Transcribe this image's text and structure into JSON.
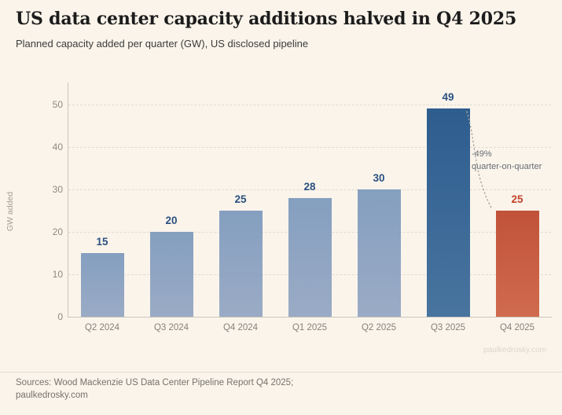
{
  "header": {
    "title": "US data center capacity additions halved in Q4 2025",
    "subtitle": "Planned capacity added per quarter (GW), US disclosed pipeline"
  },
  "chart_data": {
    "type": "bar",
    "title": "US data center capacity additions halved in Q4 2025",
    "subtitle": "Planned capacity added per quarter (GW), US disclosed pipeline",
    "categories": [
      "Q2 2024",
      "Q3 2024",
      "Q4 2024",
      "Q1 2025",
      "Q2 2025",
      "Q3 2025",
      "Q4 2025"
    ],
    "values": [
      15,
      20,
      25,
      28,
      30,
      49,
      25
    ],
    "bar_roles": [
      "default",
      "default",
      "default",
      "default",
      "default",
      "highlight",
      "drop"
    ],
    "xlabel": "",
    "ylabel": "GW added",
    "ylim": [
      0,
      55
    ],
    "yticks": [
      0,
      10,
      20,
      30,
      40,
      50
    ],
    "grid": "horizontal-dashed",
    "legend": "none",
    "annotation": {
      "line1": "-49%",
      "line2": "quarter-on-quarter",
      "from_category": "Q3 2025",
      "to_category": "Q4 2025"
    },
    "watermark": "paulkedrosky.com",
    "styles": {
      "default": {
        "top": "#859fc0",
        "bottom": "#9aabc5",
        "label": "#2b5180"
      },
      "highlight": {
        "top": "#2e5d8e",
        "bottom": "#48749f",
        "label": "#2b5180"
      },
      "drop": {
        "top": "#c0523a",
        "bottom": "#d16b4e",
        "label": "#c2432b"
      },
      "background": "#faf4eb",
      "grid_color": "#e2dbd0",
      "axis_color": "#ccc5ba",
      "tick_color": "#8f8a80",
      "annotation_line_color": "#a8a49c"
    }
  },
  "footer": {
    "sources_line1": "Sources: Wood Mackenzie US Data Center Pipeline Report Q4 2025;",
    "sources_line2": "paulkedrosky.com"
  }
}
